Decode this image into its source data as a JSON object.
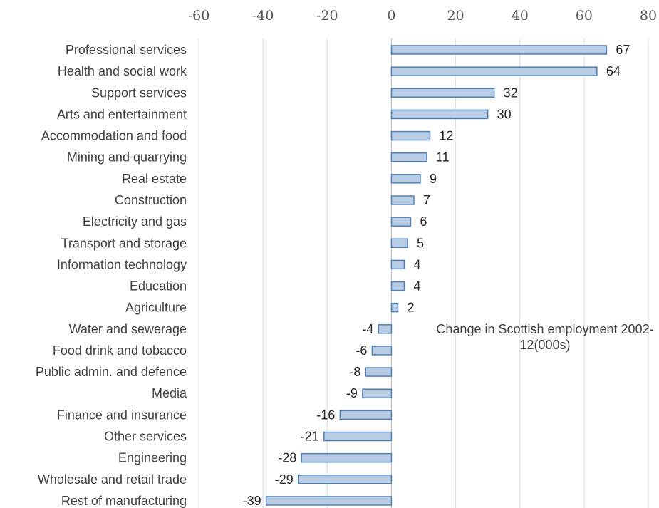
{
  "chart_data": {
    "type": "bar",
    "orientation": "horizontal",
    "title": "Change in Scottish employment 2002-12(000s)",
    "xlabel": "",
    "ylabel": "",
    "xlim": [
      -60,
      80
    ],
    "x_ticks": [
      -60,
      -40,
      -20,
      0,
      20,
      40,
      60,
      80
    ],
    "x_axis_position": "top",
    "grid": true,
    "bar_color": "#b8cce4",
    "bar_edge_color": "#4f81bd",
    "categories": [
      "Professional services",
      "Health and social work",
      "Support services",
      "Arts and entertainment",
      "Accommodation and food",
      "Mining and quarrying",
      "Real estate",
      "Construction",
      "Electricity and gas",
      "Transport and storage",
      "Information technology",
      "Education",
      "Agriculture",
      "Water and sewerage",
      "Food drink and tobacco",
      "Public admin. and defence",
      "Media",
      "Finance and insurance",
      "Other services",
      "Engineering",
      "Wholesale and retail trade",
      "Rest of manufacturing"
    ],
    "values": [
      67,
      64,
      32,
      30,
      12,
      11,
      9,
      7,
      6,
      5,
      4,
      4,
      2,
      -4,
      -6,
      -8,
      -9,
      -16,
      -21,
      -28,
      -29,
      -39
    ]
  }
}
